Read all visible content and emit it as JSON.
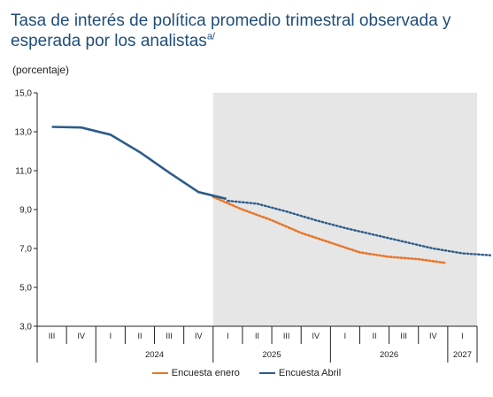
{
  "title": "Tasa de interés de política promedio trimestral observada y esperada por los analistas",
  "title_note": "a/",
  "unit": "(porcentaje)",
  "colors": {
    "enero": "#e8762b",
    "abril": "#2e5c8a",
    "shade": "#e6e6e6",
    "axis": "#222222",
    "title": "#1f4e79"
  },
  "chart_data": {
    "type": "line",
    "categories": [
      "III",
      "IV",
      "I",
      "II",
      "III",
      "IV",
      "I",
      "II",
      "III",
      "IV",
      "I",
      "II",
      "III",
      "IV",
      "I"
    ],
    "years": [
      {
        "label": "2024",
        "from": 2,
        "to": 5
      },
      {
        "label": "2025",
        "from": 6,
        "to": 9
      },
      {
        "label": "2026",
        "from": 10,
        "to": 13
      },
      {
        "label": "2027",
        "from": 14,
        "to": 14
      }
    ],
    "ylim": [
      3,
      15
    ],
    "yticks": [
      "3,0",
      "5,0",
      "7,0",
      "9,0",
      "11,0",
      "13,0",
      "15,0"
    ],
    "ytick_values": [
      3,
      5,
      7,
      9,
      11,
      13,
      15
    ],
    "shaded_from_index": 6,
    "observed": {
      "name": "Encuesta Abril",
      "x": [
        0,
        1,
        2,
        3,
        4,
        5,
        5.95
      ],
      "values": [
        13.25,
        13.22,
        12.85,
        11.95,
        10.9,
        9.9,
        9.55
      ]
    },
    "series": [
      {
        "name": "Encuesta enero",
        "x": [
          5.5,
          6.5,
          7.5,
          8.5,
          9.5,
          10.5,
          11.5,
          12.5,
          13.45
        ],
        "values": [
          9.65,
          9.0,
          8.45,
          7.8,
          7.3,
          6.8,
          6.57,
          6.45,
          6.25
        ]
      },
      {
        "name": "Encuesta Abril",
        "x": [
          6.0,
          7.0,
          8.0,
          9.0,
          10.0,
          11.0,
          12.0,
          13.0,
          14.0,
          14.95
        ],
        "values": [
          9.45,
          9.3,
          8.9,
          8.45,
          8.05,
          7.7,
          7.35,
          7.0,
          6.75,
          6.65
        ]
      }
    ],
    "legend_placement": "bottom"
  }
}
